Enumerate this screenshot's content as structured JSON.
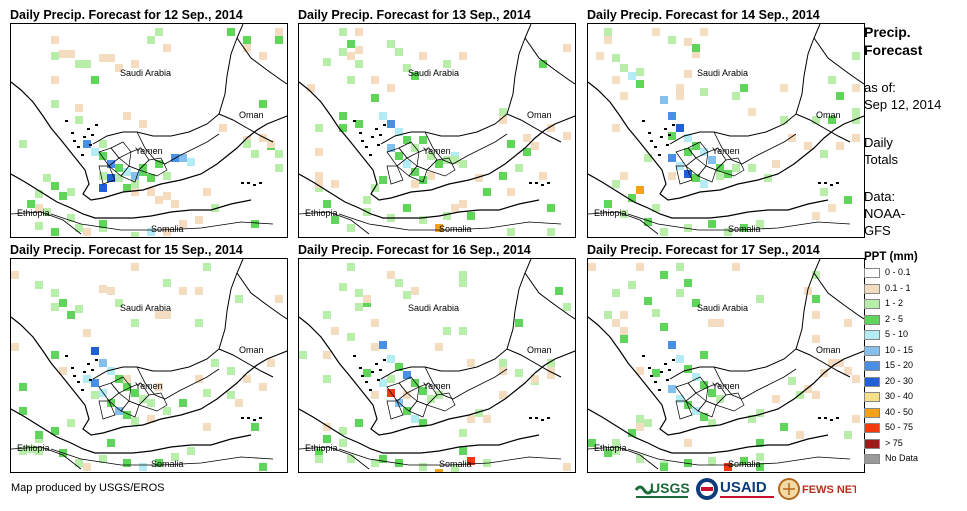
{
  "panels": [
    {
      "title": "Daily Precip. Forecast for 12  Sep., 2014"
    },
    {
      "title": "Daily Precip. Forecast for 13  Sep., 2014"
    },
    {
      "title": "Daily Precip. Forecast for 14  Sep., 2014"
    },
    {
      "title": "Daily Precip. Forecast for 15  Sep., 2014"
    },
    {
      "title": "Daily Precip. Forecast for 16  Sep., 2014"
    },
    {
      "title": "Daily Precip. Forecast for 17  Sep., 2014"
    }
  ],
  "map_labels": {
    "saudi": "Saudi Arabia",
    "oman": "Oman",
    "yemen": "Yemen",
    "ethiopia": "Ethiopia",
    "somalia": "Somalia"
  },
  "legend": {
    "title_line1": "Precip.",
    "title_line2": "Forecast",
    "asof_label": "as of:",
    "asof_date": "Sep 12, 2014",
    "daily_line1": "Daily",
    "daily_line2": "Totals",
    "data_line1": "Data:",
    "data_line2": "NOAA-",
    "data_line3": "GFS",
    "ppt_title": "PPT (mm)",
    "items": [
      {
        "label": "0 - 0.1",
        "color": "#ffffff"
      },
      {
        "label": "0.1 - 1",
        "color": "#f3dcc0"
      },
      {
        "label": "1 - 2",
        "color": "#b9eeaa"
      },
      {
        "label": "2 - 5",
        "color": "#5fd65a"
      },
      {
        "label": "5 - 10",
        "color": "#b4ecf5"
      },
      {
        "label": "10 - 15",
        "color": "#84c0ee"
      },
      {
        "label": "15 - 20",
        "color": "#4a8fe6"
      },
      {
        "label": "20 - 30",
        "color": "#1f5fd8"
      },
      {
        "label": "30 - 40",
        "color": "#f7e08a"
      },
      {
        "label": "40 - 50",
        "color": "#f4a21a"
      },
      {
        "label": "50 - 75",
        "color": "#f23a0c"
      },
      {
        "label": "> 75",
        "color": "#9c1a1a"
      },
      {
        "label": "No Data",
        "color": "#9a9a9a"
      }
    ]
  },
  "credit": "Map produced by USGS/EROS",
  "logos": {
    "usgs": "USGS",
    "usaid": "USAID",
    "fewsnet": "FEWS NET"
  }
}
